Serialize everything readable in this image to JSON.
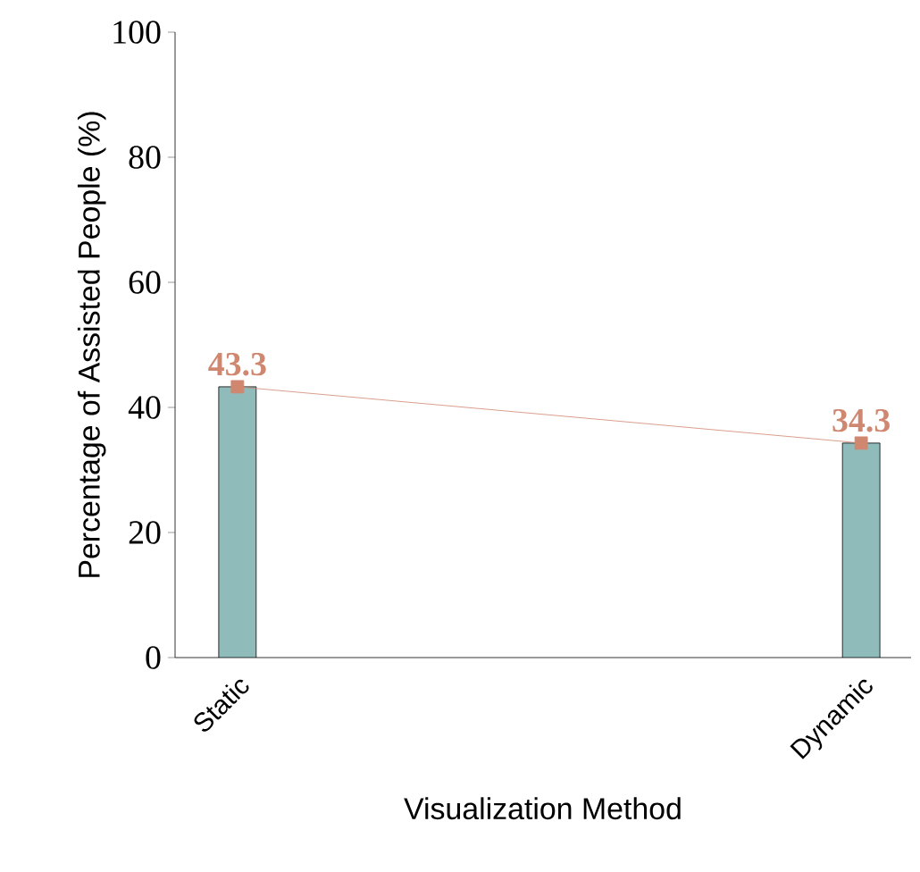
{
  "chart_data": {
    "type": "bar",
    "xlabel": "Visualization Method",
    "ylabel": "Percentage of Assisted People (%)",
    "categories": [
      "Static",
      "Dynamic"
    ],
    "ylim": [
      0,
      100
    ],
    "yticks": [
      0,
      20,
      40,
      60,
      80,
      100
    ],
    "series": [
      {
        "color": "#8fbcbb",
        "values": [
          43.3,
          34.3
        ]
      },
      {
        "type": "line",
        "color": "#d08770",
        "marker": "square",
        "values": [
          43.3,
          34.3
        ],
        "value_labels": [
          "43.3",
          "34.3"
        ]
      }
    ]
  }
}
